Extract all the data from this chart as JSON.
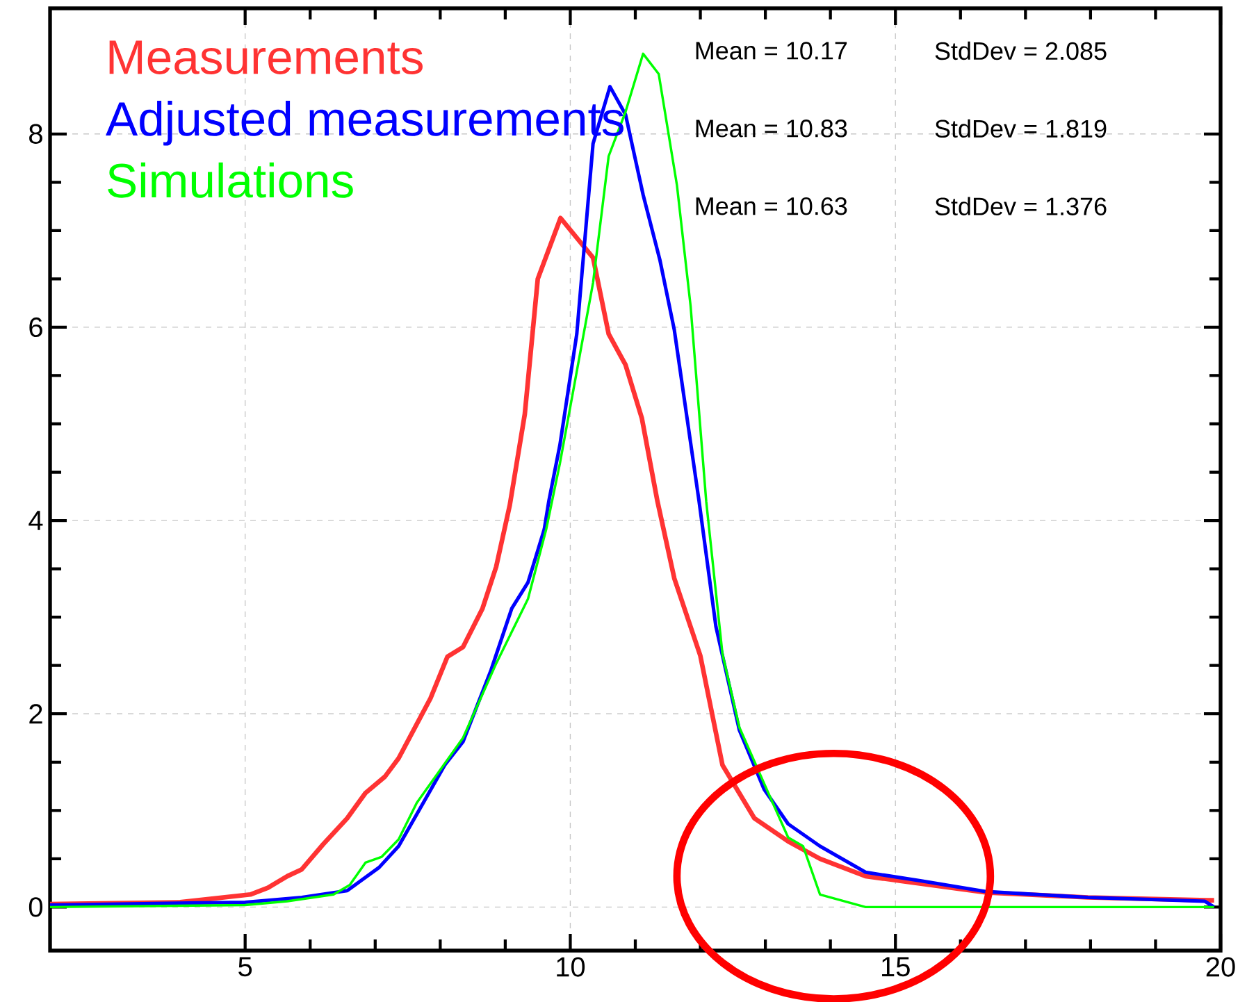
{
  "chart_data": {
    "type": "line",
    "xlim": [
      2,
      20
    ],
    "ylim": [
      -0.45,
      9.3
    ],
    "xticks": [
      5,
      10,
      15,
      20
    ],
    "yticks": [
      0,
      2,
      4,
      6,
      8
    ],
    "grid": true,
    "legend": "top left",
    "annotations": [
      "Mean = 10.17",
      "StdDev = 2.085",
      "Mean = 10.83",
      "StdDev = 1.819",
      "Mean = 10.63",
      "StdDev = 1.376"
    ],
    "series": [
      {
        "name": "Measurements",
        "color": "#ff3333",
        "x": [
          2,
          4,
          5.08,
          5.35,
          5.65,
          5.87,
          6.2,
          6.57,
          6.85,
          7.15,
          7.36,
          7.85,
          8.11,
          8.35,
          8.65,
          8.86,
          9.07,
          9.3,
          9.5,
          9.85,
          10.35,
          10.59,
          10.85,
          11.1,
          11.34,
          11.6,
          12,
          12.34,
          12.83,
          13.35,
          13.84,
          14.54,
          16.4,
          17.96,
          19.8,
          19.9
        ],
        "values": [
          0.03,
          0.05,
          0.13,
          0.2,
          0.32,
          0.39,
          0.65,
          0.92,
          1.18,
          1.35,
          1.54,
          2.16,
          2.59,
          2.69,
          3.09,
          3.52,
          4.16,
          5.1,
          6.5,
          7.13,
          6.72,
          5.93,
          5.61,
          5.06,
          4.2,
          3.4,
          2.6,
          1.47,
          0.92,
          0.68,
          0.5,
          0.32,
          0.15,
          0.1,
          0.07,
          0.07
        ]
      },
      {
        "name": "Adjusted measurements",
        "color": "#0000ff",
        "x": [
          2,
          5,
          5.87,
          6.57,
          7.06,
          7.36,
          8.07,
          8.35,
          8.78,
          9.1,
          9.35,
          9.6,
          9.67,
          9.84,
          10.1,
          10.35,
          10.61,
          10.85,
          11.12,
          11.38,
          11.6,
          11.98,
          12.24,
          12.6,
          12.98,
          13.35,
          13.84,
          14.54,
          15.4,
          16.4,
          17.96,
          19.76,
          19.9
        ],
        "values": [
          0.02,
          0.05,
          0.1,
          0.17,
          0.41,
          0.63,
          1.47,
          1.71,
          2.45,
          3.09,
          3.36,
          3.91,
          4.2,
          4.78,
          5.93,
          7.9,
          8.49,
          8.2,
          7.37,
          6.69,
          5.97,
          4.2,
          2.9,
          1.83,
          1.22,
          0.86,
          0.63,
          0.36,
          0.27,
          0.16,
          0.1,
          0.06,
          0
        ]
      },
      {
        "name": "Simulations",
        "color": "#00ff00",
        "x": [
          2,
          5,
          5.65,
          6.36,
          6.61,
          6.85,
          7.1,
          7.36,
          7.64,
          8.35,
          8.86,
          9.35,
          9.63,
          9.84,
          10.35,
          10.59,
          10.85,
          11.12,
          11.36,
          11.64,
          11.85,
          12.09,
          12.34,
          12.6,
          12.98,
          13.35,
          13.58,
          13.84,
          14.54,
          19.9
        ],
        "values": [
          0,
          0.02,
          0.06,
          0.13,
          0.23,
          0.46,
          0.52,
          0.7,
          1.08,
          1.75,
          2.52,
          3.19,
          3.91,
          4.59,
          6.46,
          7.77,
          8.23,
          8.83,
          8.62,
          7.47,
          6.22,
          4.2,
          2.62,
          1.86,
          1.28,
          0.72,
          0.63,
          0.13,
          0,
          0
        ]
      }
    ]
  }
}
